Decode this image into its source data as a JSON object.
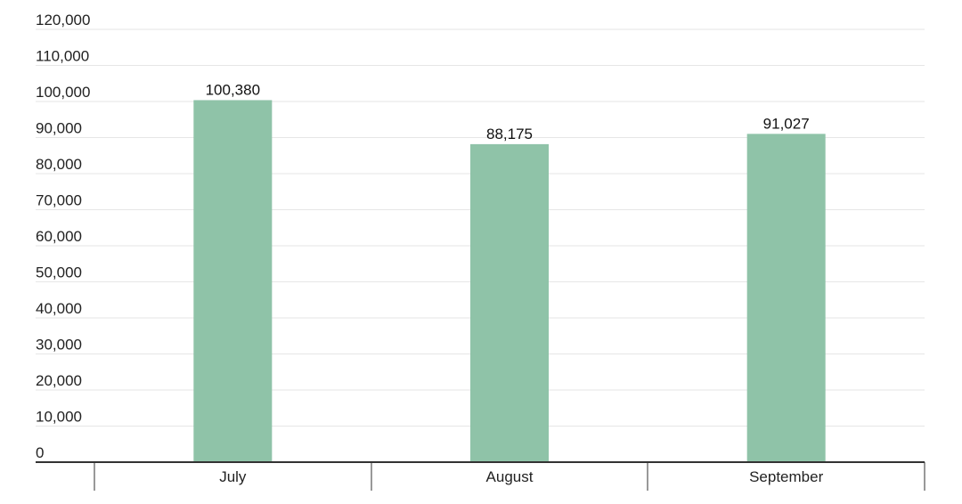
{
  "chart_data": {
    "type": "bar",
    "categories": [
      "July",
      "August",
      "September"
    ],
    "values": [
      100380,
      88175,
      91027
    ],
    "value_labels": [
      "100,380",
      "88,175",
      "91,027"
    ],
    "yticks": [
      "0",
      "10,000",
      "20,000",
      "30,000",
      "40,000",
      "50,000",
      "60,000",
      "70,000",
      "80,000",
      "90,000",
      "100,000",
      "110,000",
      "120,000"
    ],
    "ylim": [
      0,
      120000
    ],
    "ystep": 10000,
    "grid": true,
    "title": "",
    "xlabel": "",
    "ylabel": "",
    "bar_color": "#8fc3a8"
  }
}
